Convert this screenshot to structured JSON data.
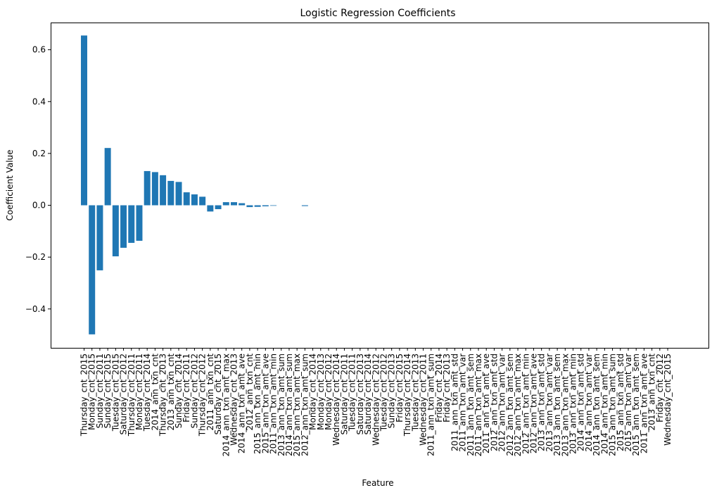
{
  "chart_data": {
    "type": "bar",
    "title": "Logistic Regression Coefficients",
    "xlabel": "Feature",
    "ylabel": "Coefficient Value",
    "ylim": [
      -0.55,
      0.705
    ],
    "yticks": [
      0.6,
      0.4,
      0.2,
      0.0,
      -0.2,
      -0.4
    ],
    "ytick_labels": [
      "0.6",
      "0.4",
      "0.2",
      "0.0",
      "−0.2",
      "−0.4"
    ],
    "bar_color": "#1f77b4",
    "grid": false,
    "categories": [
      "Thursday_cnt_2015",
      "Monday_cnt_2015",
      "Sunday_cnt_2011",
      "Sunday_cnt_2015",
      "Tuesday_cnt_2015",
      "Saturday_cnt_2012",
      "Thursday_cnt_2011",
      "Monday_cnt_2011",
      "Tuesday_cnt_2014",
      "2014_ann_txn_cnt",
      "Thursday_cnt_2013",
      "2013_ann_txn_cnt",
      "Sunday_cnt_2014",
      "Friday_cnt_2011",
      "Sunday_cnt_2012",
      "Thursday_cnt_2012",
      "2011_ann_txn_cnt",
      "Saturday_cnt_2015",
      "2014_ann_txn_amt_max",
      "Wednesday_cnt_2013",
      "2014_ann_txn_amt_ave",
      "2012_ann_txn_cnt",
      "2015_ann_txn_amt_min",
      "2015_ann_txn_amt_ave",
      "2011_ann_txn_amt_min",
      "2013_ann_txn_amt_sum",
      "2014_ann_txn_amt_sum",
      "2015_ann_txn_amt_max",
      "2012_ann_txn_amt_sum",
      "Monday_cnt_2014",
      "Monday_cnt_2013",
      "Monday_cnt_2012",
      "Wednesday_cnt_2014",
      "Saturday_cnt_2011",
      "Tuesday_cnt_2011",
      "Saturday_cnt_2013",
      "Saturday_cnt_2014",
      "Wednesday_cnt_2012",
      "Tuesday_cnt_2012",
      "Sunday_cnt_2013",
      "Friday_cnt_2015",
      "Thursday_cnt_2014",
      "Tuesday_cnt_2013",
      "Wednesday_cnt_2011",
      "2011_ann_txn_amt_sum",
      "Friday_cnt_2014",
      "Friday_cnt_2013",
      "2011_ann_txn_amt_std",
      "2011_ann_txn_amt_var",
      "2011_ann_txn_amt_sem",
      "2011_ann_txn_amt_max",
      "2011_ann_txn_amt_ave",
      "2012_ann_txn_amt_std",
      "2012_ann_txn_amt_var",
      "2012_ann_txn_amt_sem",
      "2012_ann_txn_amt_max",
      "2012_ann_txn_amt_min",
      "2012_ann_txn_amt_ave",
      "2013_ann_txn_amt_std",
      "2013_ann_txn_amt_var",
      "2013_ann_txn_amt_sem",
      "2013_ann_txn_amt_max",
      "2013_ann_txn_amt_min",
      "2014_ann_txn_amt_std",
      "2014_ann_txn_amt_var",
      "2014_ann_txn_amt_sem",
      "2014_ann_txn_amt_min",
      "2015_ann_txn_amt_sum",
      "2015_ann_txn_amt_std",
      "2015_ann_txn_amt_var",
      "2015_ann_txn_amt_sem",
      "2011_ann_txn_amt_ave",
      "2013_ann_txn_cnt",
      "Friday_cnt_2012",
      "Wednesday_cnt_2015"
    ],
    "values": [
      0.655,
      -0.498,
      -0.251,
      0.221,
      -0.197,
      -0.164,
      -0.145,
      -0.137,
      0.132,
      0.128,
      0.116,
      0.094,
      0.09,
      0.05,
      0.042,
      0.033,
      -0.024,
      -0.015,
      0.012,
      0.012,
      0.008,
      -0.007,
      -0.006,
      -0.004,
      -0.002,
      0,
      0,
      0,
      -0.003,
      0,
      0,
      0,
      0,
      0,
      0,
      0,
      0,
      0,
      0,
      0,
      0,
      0,
      0,
      0,
      0,
      0,
      0,
      0,
      0,
      0,
      0,
      0,
      0,
      0,
      0,
      0,
      0,
      0,
      0,
      0,
      0,
      0,
      0,
      0,
      0,
      0,
      0,
      0,
      0,
      0,
      0,
      0,
      0,
      0,
      0
    ]
  }
}
